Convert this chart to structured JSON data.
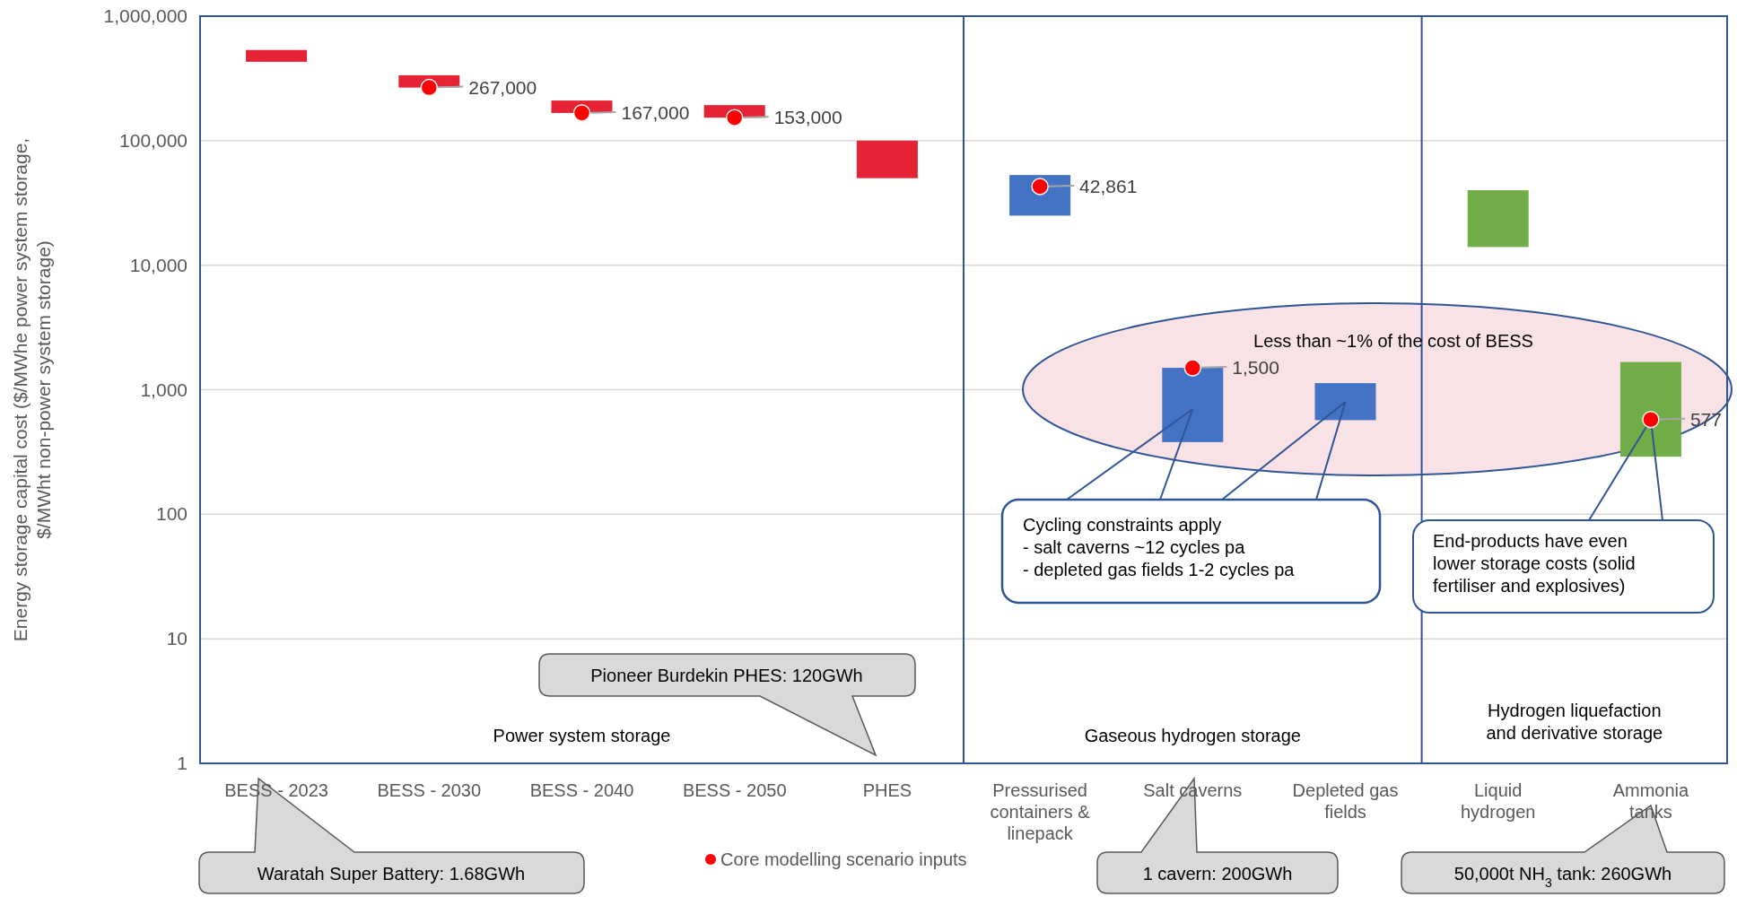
{
  "chart_data": {
    "type": "bar",
    "ylabel": "Energy storage capital cost ($/MWhe power system storage,\n$/MWht  non-power system storage)",
    "categories": [
      "BESS - 2023",
      "BESS - 2030",
      "BESS - 2040",
      "BESS - 2050",
      "PHES",
      "Pressurised containers & linepack",
      "Salt caverns",
      "Depleted gas fields",
      "Liquid hydrogen",
      "Ammonia tanks"
    ],
    "log": true,
    "ylim": [
      1,
      1000000
    ],
    "yticks": [
      1,
      10,
      100,
      {
        "value": 1000,
        "label": "1,000"
      },
      {
        "value": 10000,
        "label": "10,000"
      },
      {
        "value": 100000,
        "label": "100,000"
      },
      {
        "value": 1000000,
        "label": "1,000,000"
      }
    ],
    "grid": "y",
    "legend": "bottom",
    "series": [
      {
        "type": "bar",
        "values": [
          105000,
          68000,
          43000,
          40000,
          50000,
          28000,
          1120,
          560,
          26000,
          1380
        ],
        "base": [
          430000,
          267000,
          167000,
          153000,
          50000,
          25000,
          380,
          570,
          14000,
          290
        ],
        "colors": [
          "#e52334",
          "#e52334",
          "#e52334",
          "#e52334",
          "#e52334",
          "#4472c4",
          "#4472c4",
          "#4472c4",
          "#70ad47",
          "#70ad47"
        ]
      },
      {
        "type": "scatter",
        "name": "Core modelling scenario inputs",
        "color": "#ff0000",
        "marker": "circle",
        "x": [
          "BESS - 2030",
          "BESS - 2040",
          "BESS - 2050",
          "Pressurised containers & linepack",
          "Salt caverns",
          "Ammonia tanks"
        ],
        "values": [
          267000,
          167000,
          153000,
          42861,
          1500,
          577
        ],
        "value_labels": [
          "267,000",
          "167,000",
          "153,000",
          "42,861",
          "1,500",
          "577"
        ]
      }
    ],
    "annotations": [
      "Power system storage",
      "Gaseous hydrogen storage",
      "Hydrogen liquefaction and derivative storage",
      "Less than ~1% of the cost of BESS",
      "Cycling constraints apply\n- salt caverns ~12 cycles pa\n- depleted gas fields 1-2 cycles pa",
      {
        "text": "End-products have even\nlower storage costs (solid\nfertiliser and explosives)",
        "x": "Ammonia tanks",
        "y": 577
      },
      "Pioneer Burdekin PHES: 120GWh",
      "Waratah Super Battery: 1.68GWh",
      "1 cavern: 200GWh",
      "50,000t NH$_{3}$ tank: 260GWh"
    ]
  }
}
